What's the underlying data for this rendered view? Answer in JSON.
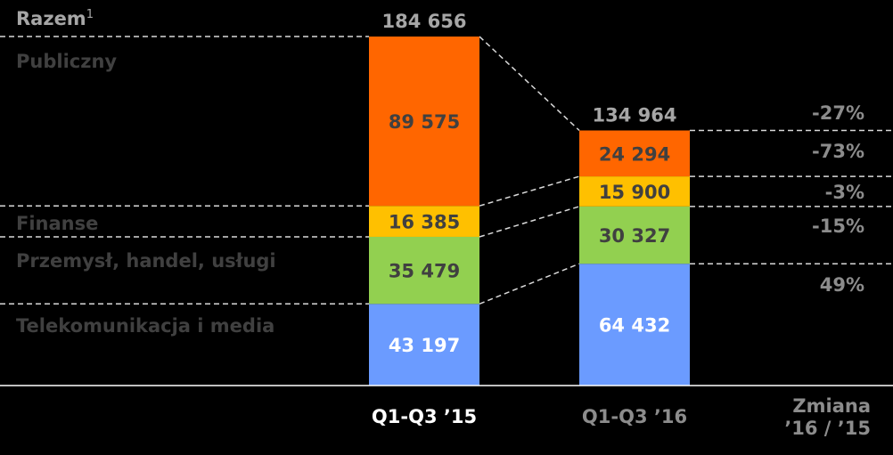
{
  "chart_data": {
    "type": "bar",
    "stacked": true,
    "categories": [
      "Q1-Q3 ’15",
      "Q1-Q3 ’16"
    ],
    "series": [
      {
        "name": "Telekomunikacja i media",
        "color": "#6b9bff",
        "values": [
          43197,
          64432
        ],
        "labels": [
          "43 197",
          "64 432"
        ],
        "change": "49%"
      },
      {
        "name": "Przemysł, handel, usługi",
        "color": "#92d050",
        "values": [
          35479,
          30327
        ],
        "labels": [
          "35 479",
          "30 327"
        ],
        "change": "-15%"
      },
      {
        "name": "Finanse",
        "color": "#ffc000",
        "values": [
          16385,
          15900
        ],
        "labels": [
          "16 385",
          "15 900"
        ],
        "change": "-3%"
      },
      {
        "name": "Publiczny",
        "color": "#ff6600",
        "values": [
          89575,
          24294
        ],
        "labels": [
          "89 575",
          "24 294"
        ],
        "change": "-73%"
      }
    ],
    "totals": {
      "name": "Razem",
      "superscript": "1",
      "values": [
        184656,
        134964
      ],
      "labels": [
        "184 656",
        "134 964"
      ],
      "change": "-27%"
    },
    "change_header": [
      "Zmiana",
      "’16 / ’15"
    ]
  }
}
